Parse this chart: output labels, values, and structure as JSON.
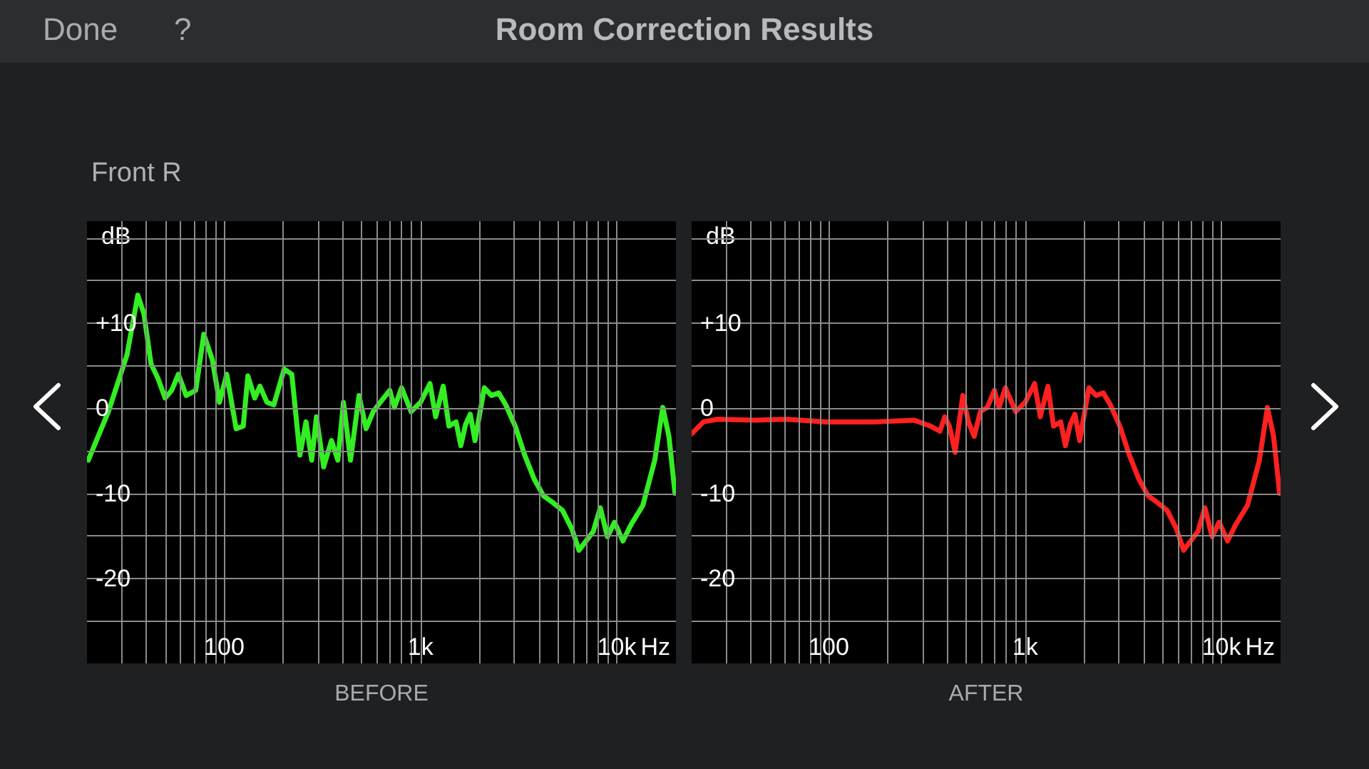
{
  "chart_data": [
    {
      "type": "line",
      "title": "Room Correction Results",
      "subtitle": "Front R",
      "annotations": [
        "Done",
        "?",
        "BEFORE"
      ],
      "xlabel": "Hz",
      "ylabel": "dB",
      "log": "x",
      "grid": true,
      "xlim": [
        20,
        20000
      ],
      "ylim": [
        -30,
        22
      ],
      "xticks": [
        {
          "value": 30,
          "label": null
        },
        {
          "value": 40,
          "label": null
        },
        {
          "value": 50,
          "label": null
        },
        {
          "value": 60,
          "label": null
        },
        {
          "value": 70,
          "label": null
        },
        {
          "value": 80,
          "label": null
        },
        {
          "value": 90,
          "label": null
        },
        {
          "value": 100,
          "label": "100"
        },
        {
          "value": 200,
          "label": null
        },
        {
          "value": 300,
          "label": null
        },
        {
          "value": 400,
          "label": null
        },
        {
          "value": 500,
          "label": null
        },
        {
          "value": 600,
          "label": null
        },
        {
          "value": 700,
          "label": null
        },
        {
          "value": 800,
          "label": null
        },
        {
          "value": 900,
          "label": null
        },
        {
          "value": 1000,
          "label": "1k"
        },
        {
          "value": 2000,
          "label": null
        },
        {
          "value": 3000,
          "label": null
        },
        {
          "value": 4000,
          "label": null
        },
        {
          "value": 5000,
          "label": null
        },
        {
          "value": 6000,
          "label": null
        },
        {
          "value": 7000,
          "label": null
        },
        {
          "value": 8000,
          "label": null
        },
        {
          "value": 9000,
          "label": null
        },
        {
          "value": 10000,
          "label": "10k"
        }
      ],
      "yticks": [
        {
          "value": -25,
          "label": null
        },
        -20,
        {
          "value": -15,
          "label": null
        },
        -10,
        {
          "value": -5,
          "label": null
        },
        0,
        {
          "value": 5,
          "label": null
        },
        {
          "value": 10,
          "label": "+10"
        },
        {
          "value": 15,
          "label": null
        },
        {
          "value": 20,
          "label": null
        }
      ],
      "x": [
        20.3,
        25.7,
        32,
        36.3,
        39,
        42.4,
        46,
        50,
        54,
        58.4,
        64,
        71.6,
        78.7,
        87,
        94.6,
        103,
        115,
        125,
        132,
        143,
        152,
        165,
        179,
        202,
        221,
        243,
        261,
        279,
        295,
        321,
        352,
        379,
        405,
        440,
        486,
        528,
        574,
        624,
        697,
        736,
        801,
        895,
        1000,
        1117,
        1194,
        1305,
        1395,
        1517,
        1604,
        1696,
        1792,
        1894,
        2113,
        2296,
        2500,
        2717,
        3036,
        3392,
        3788,
        4232,
        4729,
        5284,
        5904,
        6414,
        6969,
        7580,
        8238,
        8955,
        9730,
        10740,
        11800,
        13580,
        15600,
        17140,
        18420,
        19780
      ],
      "series": [
        {
          "color": "#33ee22",
          "values": [
            -6.1,
            -0.4,
            6.3,
            13.3,
            11.1,
            5.2,
            3.5,
            1.2,
            2.1,
            4.0,
            1.5,
            2.1,
            8.7,
            5.7,
            0.7,
            4.0,
            -2.4,
            -2.1,
            3.8,
            1.2,
            2.6,
            0.7,
            0.4,
            4.6,
            4.0,
            -5.5,
            -1.6,
            -6.1,
            -1.0,
            -6.9,
            -3.8,
            -6.1,
            0.7,
            -6.1,
            1.5,
            -2.4,
            -0.4,
            0.7,
            2.1,
            0.1,
            2.4,
            -0.4,
            0.7,
            2.9,
            -1.0,
            2.6,
            -2.1,
            -1.6,
            -4.4,
            -1.9,
            -0.7,
            -3.8,
            2.4,
            1.5,
            1.8,
            0.4,
            -2.1,
            -5.5,
            -8.3,
            -10.3,
            -11.1,
            -12.0,
            -14.2,
            -16.7,
            -15.6,
            -14.5,
            -11.7,
            -15.1,
            -13.4,
            -15.6,
            -13.7,
            -11.4,
            -6.1,
            0.1,
            -3.3,
            -10.0
          ]
        }
      ]
    },
    {
      "type": "line",
      "annotations": [
        "AFTER"
      ],
      "xlabel": "Hz",
      "ylabel": "dB",
      "log": "x",
      "grid": true,
      "xlim": [
        20,
        20000
      ],
      "ylim": [
        -30,
        22
      ],
      "xticks": [
        {
          "value": 30,
          "label": null
        },
        {
          "value": 40,
          "label": null
        },
        {
          "value": 50,
          "label": null
        },
        {
          "value": 60,
          "label": null
        },
        {
          "value": 70,
          "label": null
        },
        {
          "value": 80,
          "label": null
        },
        {
          "value": 90,
          "label": null
        },
        {
          "value": 100,
          "label": "100"
        },
        {
          "value": 200,
          "label": null
        },
        {
          "value": 300,
          "label": null
        },
        {
          "value": 400,
          "label": null
        },
        {
          "value": 500,
          "label": null
        },
        {
          "value": 600,
          "label": null
        },
        {
          "value": 700,
          "label": null
        },
        {
          "value": 800,
          "label": null
        },
        {
          "value": 900,
          "label": null
        },
        {
          "value": 1000,
          "label": "1k"
        },
        {
          "value": 2000,
          "label": null
        },
        {
          "value": 3000,
          "label": null
        },
        {
          "value": 4000,
          "label": null
        },
        {
          "value": 5000,
          "label": null
        },
        {
          "value": 6000,
          "label": null
        },
        {
          "value": 7000,
          "label": null
        },
        {
          "value": 8000,
          "label": null
        },
        {
          "value": 9000,
          "label": null
        },
        {
          "value": 10000,
          "label": "10k"
        }
      ],
      "yticks": [
        {
          "value": -25,
          "label": null
        },
        -20,
        {
          "value": -15,
          "label": null
        },
        -10,
        {
          "value": -5,
          "label": null
        },
        0,
        {
          "value": 5,
          "label": null
        },
        {
          "value": 10,
          "label": "+10"
        },
        {
          "value": 15,
          "label": null
        },
        {
          "value": 20,
          "label": null
        }
      ],
      "x": [
        20,
        23,
        27,
        42,
        61,
        97,
        169,
        272,
        330,
        368,
        389,
        411,
        440,
        481,
        514,
        550,
        591,
        641,
        697,
        736,
        793,
        895,
        1000,
        1117,
        1194,
        1305,
        1395,
        1517,
        1604,
        1696,
        1792,
        1894,
        2113,
        2296,
        2500,
        2717,
        3036,
        3392,
        3788,
        4232,
        4729,
        5284,
        5904,
        6414,
        6969,
        7580,
        8238,
        8955,
        9730,
        10740,
        11800,
        13580,
        15600,
        17140,
        18420,
        19780
      ],
      "series": [
        {
          "color": "#ff2020",
          "values": [
            -3.0,
            -1.6,
            -1.3,
            -1.4,
            -1.3,
            -1.6,
            -1.6,
            -1.4,
            -2.1,
            -2.7,
            -1.0,
            -2.1,
            -5.2,
            1.5,
            -1.6,
            -3.3,
            -0.4,
            0.1,
            2.1,
            0.1,
            2.4,
            -0.4,
            0.7,
            2.9,
            -1.0,
            2.6,
            -2.1,
            -1.6,
            -4.4,
            -1.9,
            -0.7,
            -3.8,
            2.4,
            1.5,
            1.8,
            0.4,
            -2.1,
            -5.5,
            -8.3,
            -10.3,
            -11.1,
            -12.0,
            -14.2,
            -16.7,
            -15.6,
            -14.5,
            -11.7,
            -15.1,
            -13.4,
            -15.6,
            -13.7,
            -11.4,
            -6.1,
            0.1,
            -3.3,
            -10.0
          ]
        }
      ]
    }
  ]
}
